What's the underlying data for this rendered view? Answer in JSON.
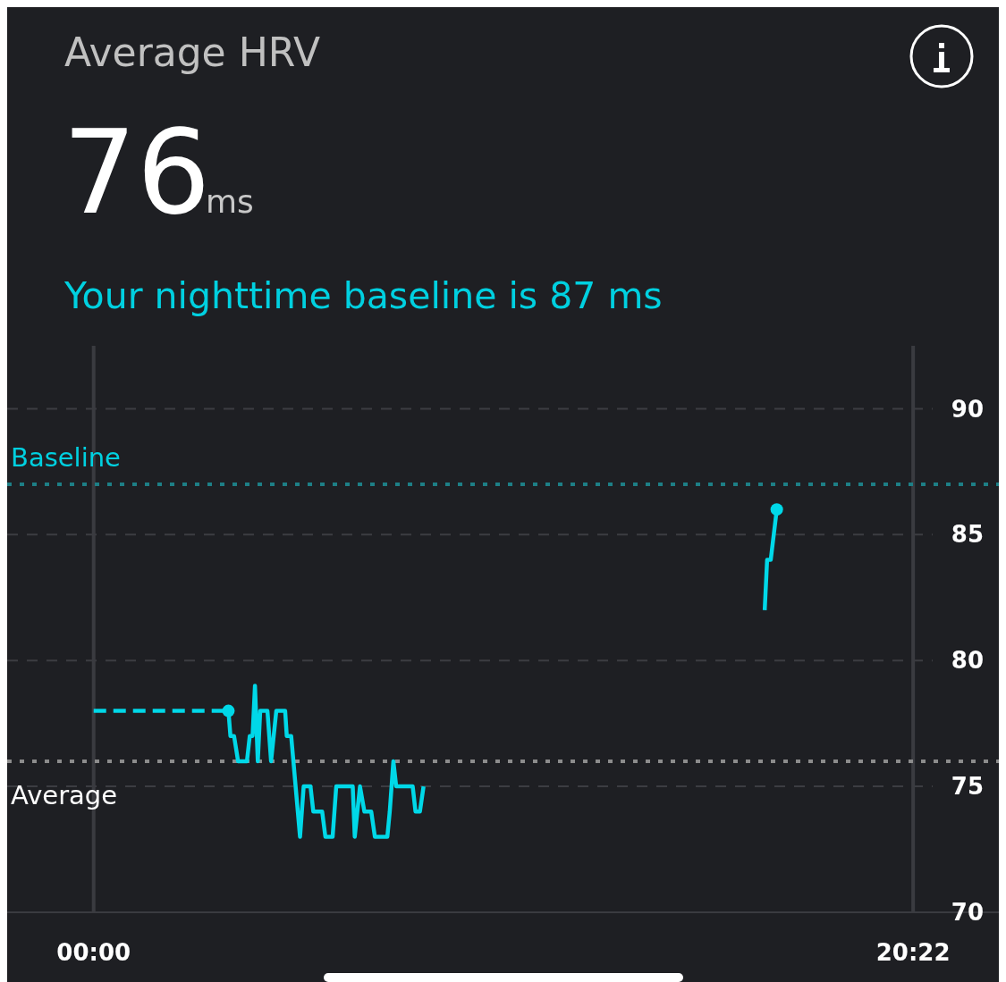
{
  "chart_data": {
    "type": "line",
    "title": "Average HRV",
    "subtitle": "Your nighttime baseline is 87 ms",
    "annotations": [
      "76",
      "ms"
    ],
    "xlim": [
      -2.15,
      22.5
    ],
    "xticks": [
      {
        "value": 0,
        "label": "00:00"
      },
      {
        "value": 20.37,
        "label": "20:22"
      }
    ],
    "ylim": [
      70,
      92.5
    ],
    "yticks": [
      70,
      75,
      80,
      85,
      90
    ],
    "grid": true,
    "marker": "none",
    "series": [
      {
        "color": "#00d8e8",
        "line_style": "dashed",
        "x": [
          0,
          3.35
        ],
        "values": [
          78,
          78
        ]
      },
      {
        "color": "#00d8e8",
        "line_style": "solid",
        "x": [
          3.35,
          3.4,
          3.49,
          3.59,
          3.81,
          3.88,
          3.95,
          4.01,
          4.08,
          4.14,
          4.32,
          4.41,
          4.54,
          4.76,
          4.8,
          4.91,
          5.13,
          5.22,
          5.39,
          5.46,
          5.68,
          5.76,
          5.94,
          6.03,
          6.44,
          6.49,
          6.62,
          6.73,
          6.9,
          6.99,
          7.3,
          7.36,
          7.45,
          7.52,
          7.93,
          8,
          8.11,
          8.2,
          12,
          16.68,
          16.74,
          16.83,
          16.98
        ],
        "values": [
          78,
          77,
          77,
          76,
          76,
          77,
          77,
          79,
          76,
          78,
          78,
          76,
          78,
          78,
          77,
          77,
          73,
          75,
          75,
          74,
          74,
          73,
          73,
          75,
          75,
          73,
          75,
          74,
          74,
          73,
          73,
          74,
          76,
          75,
          75,
          74,
          74,
          75,
          null,
          82,
          84,
          84,
          86
        ]
      },
      {
        "type": "scatter",
        "marker": "circle",
        "color": "#00d8e8",
        "x": [
          3.35,
          16.98
        ],
        "values": [
          78,
          86
        ]
      }
    ],
    "ref_lines": [
      {
        "axis": "y",
        "value": 87,
        "label": "Baseline",
        "color": "#1d7f86",
        "line_style": "dotted"
      },
      {
        "axis": "y",
        "value": 76,
        "label": "Average",
        "color": "#8c8c8c",
        "line_style": "dotted"
      }
    ]
  }
}
